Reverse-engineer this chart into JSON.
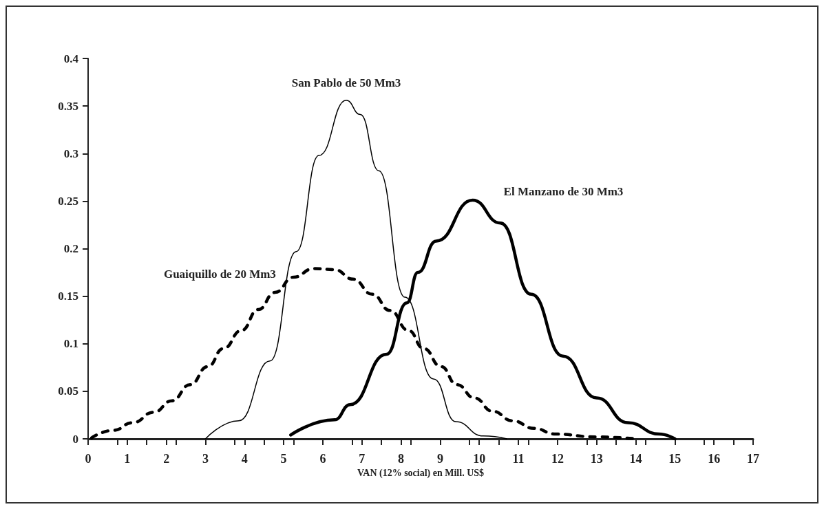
{
  "chart_data": {
    "type": "line",
    "xlabel": "VAN (12% social) en Mill. US$",
    "xlim": [
      0,
      17
    ],
    "xticks": [
      0,
      1,
      2,
      3,
      4,
      5,
      6,
      7,
      8,
      9,
      10,
      11,
      12,
      13,
      14,
      15,
      16,
      17
    ],
    "ylim": [
      0,
      0.4
    ],
    "yticks": [
      0,
      0.05,
      0.1,
      0.15,
      0.2,
      0.25,
      0.3,
      0.35,
      0.4
    ],
    "grid": false,
    "legend": false,
    "marker": "none",
    "series": [
      {
        "name": "San Pablo de 50 Mm3",
        "color": "#000000",
        "line_style": "solid",
        "x": [
          3,
          3.85,
          4.65,
          5.32,
          5.9,
          6.6,
          6.96,
          7.43,
          8.1,
          8.83,
          9.4,
          10.1,
          10.7
        ],
        "values": [
          0,
          0.019,
          0.082,
          0.197,
          0.298,
          0.356,
          0.341,
          0.282,
          0.149,
          0.063,
          0.018,
          0.003,
          0
        ]
      },
      {
        "name": "El Manzano de 30 Mm3",
        "color": "#000000",
        "line_style": "solid",
        "x": [
          5.18,
          6.3,
          6.7,
          7.63,
          8.15,
          8.43,
          8.9,
          9.83,
          10.54,
          11.33,
          12.14,
          13,
          13.8,
          14.6,
          15
        ],
        "values": [
          0.004,
          0.02,
          0.036,
          0.089,
          0.143,
          0.175,
          0.208,
          0.251,
          0.227,
          0.152,
          0.087,
          0.043,
          0.017,
          0.005,
          0
        ]
      },
      {
        "name": "Guaiquillo de 20 Mm3",
        "color": "#000000",
        "line_style": "dashed",
        "x": [
          0.09,
          0.65,
          1.14,
          1.68,
          2.14,
          2.61,
          3.06,
          3.46,
          3.92,
          4.35,
          4.78,
          5.25,
          5.77,
          6.3,
          6.77,
          7.27,
          7.72,
          8.19,
          8.58,
          9.02,
          9.43,
          9.88,
          10.34,
          10.85,
          11.4,
          11.95,
          13,
          14
        ],
        "values": [
          0.001,
          0.009,
          0.017,
          0.028,
          0.04,
          0.057,
          0.076,
          0.095,
          0.114,
          0.136,
          0.154,
          0.17,
          0.179,
          0.178,
          0.168,
          0.152,
          0.135,
          0.114,
          0.095,
          0.076,
          0.057,
          0.043,
          0.029,
          0.019,
          0.011,
          0.005,
          0.002,
          0
        ]
      }
    ]
  }
}
